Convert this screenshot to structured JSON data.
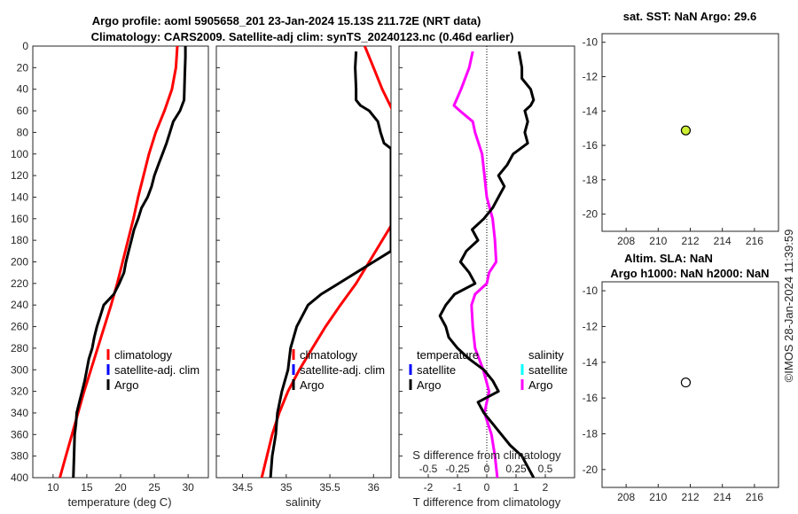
{
  "title_line1": "Argo profile: aoml 5905658_201 23-Jan-2024 15.13S 211.72E (NRT data)",
  "title_line2": "Climatology: CARS2009. Satellite-adj clim: synTS_20240123.nc (0.46d earlier)",
  "depth_ticks": [
    "0",
    "20",
    "40",
    "60",
    "80",
    "100",
    "120",
    "140",
    "160",
    "180",
    "200",
    "220",
    "240",
    "260",
    "280",
    "300",
    "320",
    "340",
    "360",
    "380",
    "400"
  ],
  "panels": {
    "temperature": {
      "xlabel": "temperature (deg C)",
      "ticks": [
        "10",
        "15",
        "20",
        "25",
        "30"
      ],
      "legend": [
        "climatology",
        "satellite-adj. clim",
        "Argo"
      ]
    },
    "salinity": {
      "xlabel": "salinity",
      "ticks": [
        "34.5",
        "35",
        "35.5",
        "36"
      ],
      "legend": [
        "climatology",
        "satellite-adj. clim",
        "Argo"
      ]
    },
    "difference": {
      "xlabel": "T difference from climatology",
      "top_label": "S difference from climatology",
      "t_ticks": [
        "-2",
        "-1",
        "0",
        "1",
        "2"
      ],
      "s_ticks": [
        "-0.5",
        "-0.25",
        "0",
        "0.25",
        "0.5"
      ],
      "legend_t_title": "temperature",
      "legend_s_title": "salinity",
      "legend_t": [
        "satellite",
        "Argo"
      ],
      "legend_s": [
        "satellite",
        "Argo"
      ]
    },
    "sst_map": {
      "title": "sat. SST: NaN Argo: 29.6",
      "xticks": [
        "208",
        "210",
        "212",
        "214",
        "216"
      ],
      "yticks": [
        "-10",
        "-12",
        "-14",
        "-16",
        "-18",
        "-20"
      ]
    },
    "sla_map": {
      "title1": "Altim. SLA: NaN",
      "title2": "Argo h1000: NaN h2000: NaN",
      "xticks": [
        "208",
        "210",
        "212",
        "214",
        "216"
      ],
      "yticks": [
        "-10",
        "-12",
        "-14",
        "-16",
        "-18",
        "-20"
      ]
    }
  },
  "credit": "©IMOS 28-Jan-2024 11:39:59",
  "colors": {
    "clim": "#ff0000",
    "sat": "#0000ff",
    "argo": "#000000",
    "sal_sat": "#00ffff",
    "sal_argo": "#ff00ff",
    "marker": "#ccee33"
  },
  "chart_data": {
    "type": "line",
    "depth_range": [
      0,
      400
    ],
    "profiles": {
      "temperature": {
        "xlim": [
          7,
          33
        ],
        "climatology": {
          "depth": [
            0,
            20,
            40,
            60,
            80,
            100,
            120,
            140,
            160,
            180,
            200,
            220,
            240,
            260,
            280,
            300,
            320,
            340,
            360,
            380,
            400
          ],
          "value": [
            28.4,
            28.2,
            27.6,
            26.5,
            25.2,
            24.2,
            23.4,
            22.6,
            21.9,
            21.1,
            20.3,
            19.5,
            18.6,
            17.6,
            16.6,
            15.6,
            14.6,
            13.7,
            12.8,
            11.9,
            11.0
          ]
        },
        "argo": {
          "depth": [
            0,
            10,
            30,
            50,
            60,
            70,
            80,
            90,
            100,
            110,
            120,
            130,
            140,
            150,
            160,
            170,
            180,
            190,
            200,
            210,
            220,
            230,
            240,
            250,
            260,
            270,
            280,
            290,
            300,
            310,
            320,
            330,
            340,
            350,
            360,
            380,
            400
          ],
          "value": [
            29.6,
            29.6,
            29.5,
            29.4,
            28.8,
            27.8,
            27.3,
            26.8,
            26.2,
            25.6,
            25.0,
            24.6,
            24.0,
            23.1,
            22.6,
            22.0,
            21.6,
            21.2,
            20.8,
            20.5,
            19.8,
            19.0,
            17.5,
            17.0,
            16.5,
            16.1,
            15.8,
            15.3,
            15.0,
            14.7,
            14.3,
            13.9,
            13.5,
            13.4,
            13.2,
            13.1,
            13.0
          ]
        }
      },
      "salinity": {
        "xlim": [
          34.2,
          36.2
        ],
        "climatology": {
          "depth": [
            0,
            20,
            40,
            60,
            160,
            180,
            200,
            220,
            240,
            260,
            280,
            300,
            320,
            340,
            360,
            380,
            400
          ],
          "value": [
            35.9,
            36.0,
            36.1,
            36.22,
            36.25,
            36.1,
            35.95,
            35.8,
            35.62,
            35.45,
            35.3,
            35.15,
            35.02,
            34.92,
            34.84,
            34.78,
            34.72
          ]
        },
        "argo": {
          "depth": [
            5,
            20,
            40,
            50,
            55,
            60,
            70,
            80,
            90,
            95,
            190,
            200,
            210,
            220,
            230,
            240,
            260,
            280,
            300,
            320,
            340,
            360,
            380,
            400
          ],
          "value": [
            35.8,
            35.79,
            35.8,
            35.8,
            35.85,
            35.95,
            36.05,
            36.08,
            36.12,
            36.2,
            36.2,
            36.0,
            35.8,
            35.6,
            35.4,
            35.25,
            35.12,
            35.05,
            35.02,
            34.95,
            34.9,
            34.88,
            34.84,
            34.82
          ]
        }
      },
      "t_difference": {
        "xlim": [
          -3,
          3
        ],
        "argo": {
          "depth": [
            5,
            20,
            30,
            40,
            50,
            55,
            60,
            70,
            80,
            90,
            100,
            110,
            120,
            130,
            140,
            150,
            160,
            170,
            180,
            190,
            200,
            210,
            220,
            230,
            240,
            250,
            260,
            270,
            280,
            290,
            300,
            310,
            320,
            330,
            340,
            350,
            360,
            370,
            380,
            390,
            400
          ],
          "value": [
            1.1,
            1.2,
            1.2,
            1.5,
            1.6,
            1.5,
            1.3,
            1.4,
            1.3,
            1.4,
            0.9,
            0.7,
            0.4,
            0.6,
            0.4,
            0.2,
            -0.1,
            -0.5,
            -0.3,
            -0.7,
            -0.9,
            -0.6,
            -0.4,
            -1.1,
            -1.4,
            -1.6,
            -1.4,
            -1.3,
            -1.0,
            -0.6,
            -0.1,
            0.2,
            0.4,
            -0.3,
            -0.1,
            0.2,
            0.5,
            0.8,
            1.2,
            1.4,
            1.6
          ]
        }
      },
      "s_difference": {
        "xlim": [
          -0.75,
          0.75
        ],
        "argo": {
          "depth": [
            5,
            20,
            40,
            50,
            55,
            60,
            70,
            80,
            100,
            120,
            140,
            160,
            180,
            200,
            210,
            220,
            230,
            240,
            260,
            280,
            300,
            320,
            340,
            360,
            380,
            400
          ],
          "value": [
            -0.12,
            -0.15,
            -0.22,
            -0.26,
            -0.28,
            -0.23,
            -0.12,
            -0.1,
            -0.04,
            -0.02,
            0.0,
            0.05,
            0.07,
            0.08,
            0.02,
            0.0,
            -0.1,
            -0.13,
            -0.12,
            -0.1,
            -0.03,
            0.02,
            -0.02,
            0.04,
            0.07,
            0.09
          ]
        }
      }
    },
    "maps": {
      "xlim": [
        206.5,
        217.5
      ],
      "ylim": [
        -21,
        -9.5
      ],
      "argo_position": {
        "lon": 211.72,
        "lat": -15.13
      }
    }
  }
}
